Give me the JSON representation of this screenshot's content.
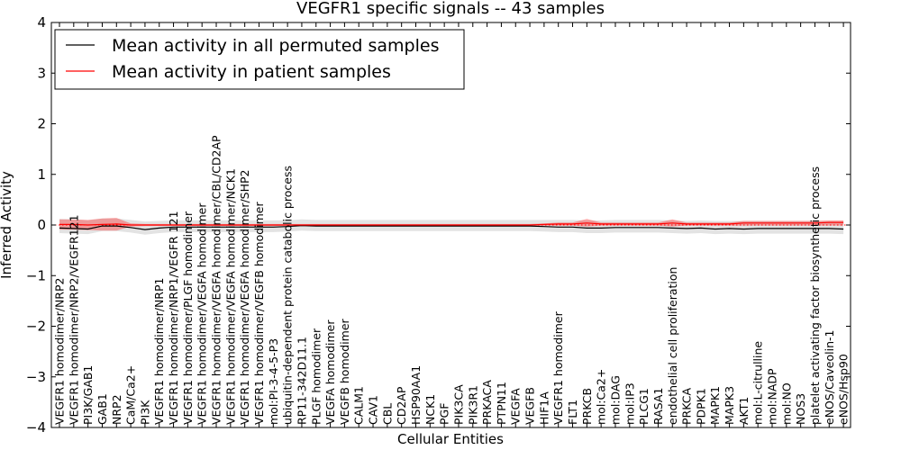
{
  "chart_data": {
    "type": "line",
    "title": "VEGFR1 specific signals -- 43 samples",
    "xlabel": "Cellular Entities",
    "ylabel": "Inferred Activity",
    "ylim": [
      -4,
      4
    ],
    "yticks": [
      -4,
      -3,
      -2,
      -1,
      0,
      1,
      2,
      3,
      4
    ],
    "ytick_labels": [
      "−4",
      "−3",
      "−2",
      "−1",
      "0",
      "1",
      "2",
      "3",
      "4"
    ],
    "legend_position": "top-left",
    "categories": [
      "VEGFR1 homodimer/NRP2",
      "VEGFR1 homodimer/NRP2/VEGFR121",
      "PI3K/GAB1",
      "GAB1",
      "NRP2",
      "CaM/Ca2+",
      "PI3K",
      "VEGFR1 homodimer/NRP1",
      "VEGFR1 homodimer/NRP1/VEGFR 121",
      "VEGFR1 homodimer/PLGF homodimer",
      "VEGFR1 homodimer/VEGFA homodimer",
      "VEGFR1 homodimer/VEGFA homodimer/CBL/CD2AP",
      "VEGFR1 homodimer/VEGFA homodimer/NCK1",
      "VEGFR1 homodimer/VEGFA homodimer/SHP2",
      "VEGFR1 homodimer/VEGFB homodimer",
      "mol:PI-3-4-5-P3",
      "ubiquitin-dependent protein catabolic process",
      "RP11-342D11.1",
      "PLGF homodimer",
      "VEGFA homodimer",
      "VEGFB homodimer",
      "CALM1",
      "CAV1",
      "CBL",
      "CD2AP",
      "HSP90AA1",
      "NCK1",
      "PGF",
      "PIK3CA",
      "PIK3R1",
      "PRKACA",
      "PTPN11",
      "VEGFA",
      "VEGFB",
      "HIF1A",
      "VEGFR1 homodimer",
      "FLT1",
      "PRKCB",
      "mol:Ca2+",
      "mol:DAG",
      "mol:IP3",
      "PLCG1",
      "RASA1",
      "endothelial cell proliferation",
      "PRKCA",
      "PDPK1",
      "MAPK1",
      "MAPK3",
      "AKT1",
      "mol:L-citrulline",
      "mol:NADP",
      "mol:NO",
      "NOS3",
      "platelet activating factor biosynthetic process",
      "eNOS/Caveolin-1",
      "eNOS/Hsp90"
    ],
    "series": [
      {
        "name": "Mean activity in all permuted samples",
        "color": "#000000",
        "values": [
          -0.06,
          -0.07,
          -0.08,
          -0.02,
          -0.02,
          -0.05,
          -0.09,
          -0.06,
          -0.04,
          -0.04,
          -0.04,
          -0.04,
          -0.04,
          -0.04,
          -0.04,
          -0.04,
          -0.03,
          -0.01,
          -0.02,
          -0.02,
          -0.02,
          -0.02,
          -0.02,
          -0.02,
          -0.02,
          -0.02,
          -0.02,
          -0.02,
          -0.02,
          -0.02,
          -0.02,
          -0.02,
          -0.02,
          -0.02,
          -0.03,
          -0.04,
          -0.04,
          -0.06,
          -0.06,
          -0.05,
          -0.05,
          -0.05,
          -0.05,
          -0.06,
          -0.07,
          -0.06,
          -0.08,
          -0.07,
          -0.08,
          -0.07,
          -0.07,
          -0.07,
          -0.07,
          -0.07,
          -0.07,
          -0.08
        ],
        "band_lower": [
          -0.16,
          -0.17,
          -0.18,
          -0.12,
          -0.12,
          -0.15,
          -0.19,
          -0.16,
          -0.14,
          -0.14,
          -0.14,
          -0.14,
          -0.14,
          -0.14,
          -0.14,
          -0.14,
          -0.13,
          -0.11,
          -0.12,
          -0.12,
          -0.12,
          -0.12,
          -0.12,
          -0.12,
          -0.12,
          -0.12,
          -0.12,
          -0.12,
          -0.12,
          -0.12,
          -0.12,
          -0.12,
          -0.12,
          -0.12,
          -0.13,
          -0.14,
          -0.14,
          -0.16,
          -0.16,
          -0.15,
          -0.15,
          -0.15,
          -0.15,
          -0.16,
          -0.17,
          -0.16,
          -0.18,
          -0.17,
          -0.18,
          -0.17,
          -0.17,
          -0.17,
          -0.17,
          -0.17,
          -0.17,
          -0.18
        ],
        "band_upper": [
          0.12,
          0.11,
          0.09,
          0.13,
          0.13,
          0.1,
          0.07,
          0.08,
          0.09,
          0.09,
          0.09,
          0.09,
          0.09,
          0.09,
          0.09,
          0.09,
          0.09,
          0.11,
          0.1,
          0.1,
          0.1,
          0.1,
          0.1,
          0.1,
          0.1,
          0.1,
          0.1,
          0.1,
          0.1,
          0.1,
          0.1,
          0.1,
          0.1,
          0.1,
          0.1,
          0.1,
          0.1,
          0.09,
          0.09,
          0.1,
          0.1,
          0.1,
          0.1,
          0.09,
          0.08,
          0.09,
          0.08,
          0.08,
          0.08,
          0.08,
          0.08,
          0.08,
          0.08,
          0.08,
          0.08,
          0.08
        ]
      },
      {
        "name": "Mean activity in patient samples",
        "color": "#ff0000",
        "values": [
          0.01,
          0.01,
          0.0,
          0.01,
          0.02,
          0.0,
          0.0,
          0.0,
          0.0,
          0.0,
          0.0,
          0.0,
          0.0,
          0.0,
          0.0,
          0.0,
          0.0,
          0.0,
          0.0,
          0.0,
          0.0,
          0.0,
          0.0,
          0.0,
          0.0,
          0.0,
          0.0,
          0.0,
          0.0,
          0.0,
          0.0,
          0.0,
          0.0,
          0.0,
          0.01,
          0.02,
          0.02,
          0.04,
          0.02,
          0.02,
          0.02,
          0.02,
          0.02,
          0.04,
          0.02,
          0.02,
          0.02,
          0.02,
          0.04,
          0.04,
          0.04,
          0.04,
          0.04,
          0.04,
          0.05,
          0.05
        ],
        "band_lower": [
          -0.09,
          -0.09,
          -0.1,
          -0.11,
          -0.11,
          -0.03,
          -0.02,
          -0.02,
          -0.02,
          -0.02,
          -0.02,
          -0.02,
          -0.02,
          -0.02,
          -0.02,
          -0.02,
          -0.01,
          -0.01,
          -0.01,
          -0.01,
          -0.01,
          -0.01,
          -0.01,
          -0.01,
          -0.01,
          -0.01,
          -0.01,
          -0.01,
          -0.01,
          -0.01,
          -0.01,
          -0.01,
          -0.01,
          -0.01,
          -0.01,
          -0.01,
          -0.01,
          -0.03,
          -0.01,
          -0.01,
          -0.01,
          -0.01,
          -0.01,
          -0.03,
          -0.01,
          -0.01,
          -0.01,
          -0.01,
          -0.01,
          -0.01,
          -0.01,
          -0.01,
          -0.01,
          -0.01,
          -0.01,
          -0.01
        ],
        "band_upper": [
          0.11,
          0.11,
          0.1,
          0.13,
          0.14,
          0.03,
          0.02,
          0.02,
          0.02,
          0.02,
          0.02,
          0.02,
          0.02,
          0.02,
          0.02,
          0.02,
          0.02,
          0.02,
          0.02,
          0.02,
          0.02,
          0.02,
          0.02,
          0.02,
          0.02,
          0.02,
          0.02,
          0.02,
          0.02,
          0.02,
          0.02,
          0.02,
          0.02,
          0.02,
          0.03,
          0.05,
          0.05,
          0.12,
          0.05,
          0.05,
          0.05,
          0.05,
          0.05,
          0.11,
          0.05,
          0.05,
          0.05,
          0.05,
          0.08,
          0.08,
          0.08,
          0.08,
          0.08,
          0.08,
          0.09,
          0.09
        ]
      }
    ],
    "reference_line": {
      "y": 0,
      "style": "dotted",
      "color": "#ff0000"
    }
  }
}
